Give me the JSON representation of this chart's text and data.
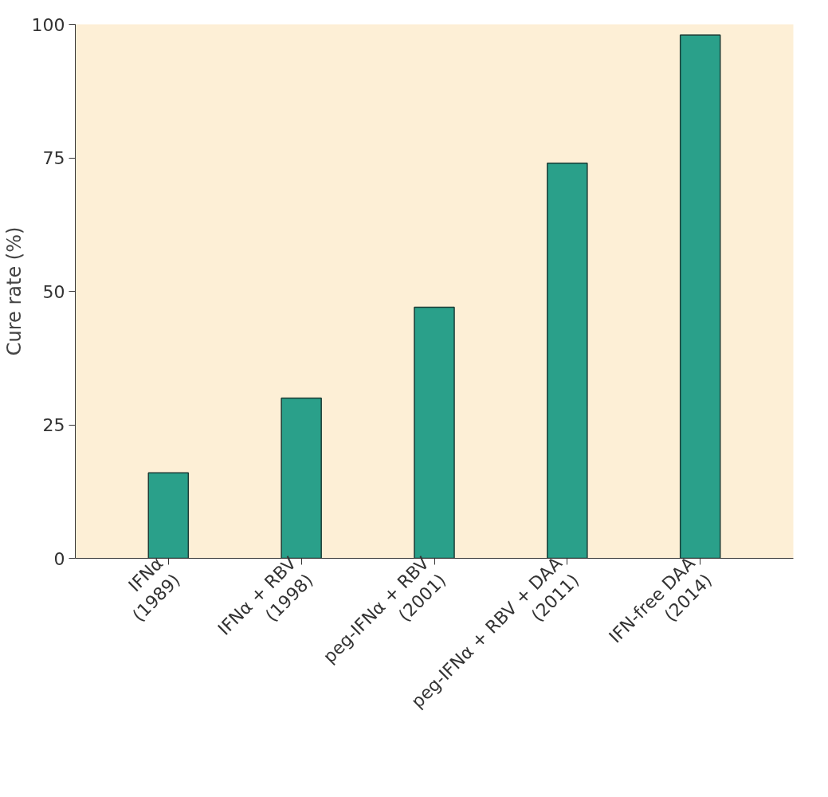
{
  "chart_data": {
    "type": "bar",
    "ylabel": "Cure rate (%)",
    "categories": [
      "IFNα\n(1989)",
      "IFNα + RBV\n(1998)",
      "peg-IFNα + RBV\n(2001)",
      "peg-IFNα + RBV + DAA\n(2011)",
      "IFN-free DAA\n(2014)"
    ],
    "values": [
      16,
      30,
      47,
      74,
      98
    ],
    "color": "#2aa08a",
    "ylim": [
      0,
      100
    ],
    "yticks": [
      0,
      25,
      50,
      75,
      100
    ]
  }
}
